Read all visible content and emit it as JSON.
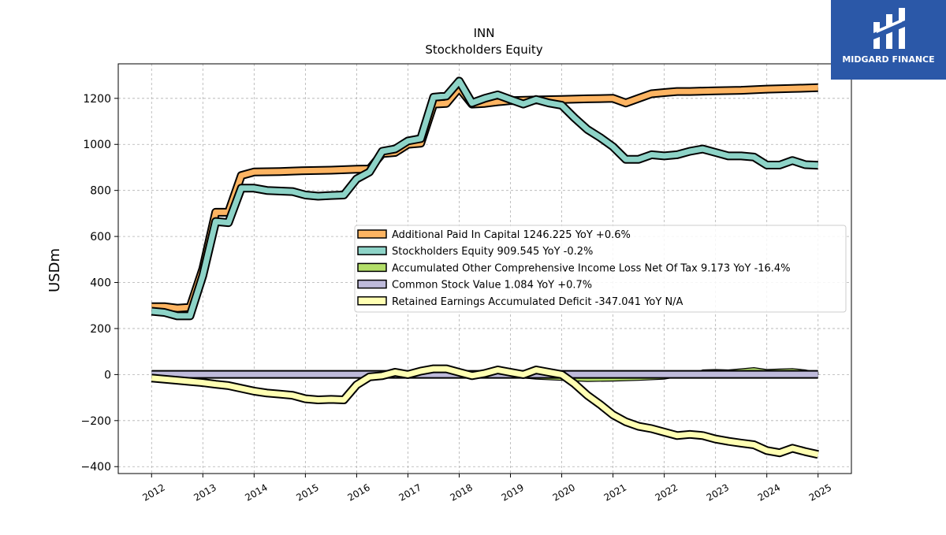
{
  "brand": {
    "name": "MIDGARD FINANCE",
    "background": "#2b58a8"
  },
  "chart_data": {
    "type": "area",
    "title": "INN",
    "subtitle": "Stockholders  Equity",
    "xlabel": "",
    "ylabel": "USDm",
    "ylim": [
      -430,
      1350
    ],
    "yticks": [
      -400,
      -200,
      0,
      200,
      400,
      600,
      800,
      1000,
      1200
    ],
    "ytick_labels": [
      "−400",
      "−200",
      "0",
      "200",
      "400",
      "600",
      "800",
      "1000",
      "1200"
    ],
    "xlim": [
      2011.35,
      2025.65
    ],
    "xticks": [
      2012,
      2013,
      2014,
      2015,
      2016,
      2017,
      2018,
      2019,
      2020,
      2021,
      2022,
      2023,
      2024,
      2025
    ],
    "xtick_labels": [
      "2012",
      "2013",
      "2014",
      "2015",
      "2016",
      "2017",
      "2018",
      "2019",
      "2020",
      "2021",
      "2022",
      "2023",
      "2024",
      "2025"
    ],
    "grid": true,
    "legend_position": "center-right",
    "series": [
      {
        "name": "Additional Paid In Capital  1246.225 YoY +0.6%",
        "color": "#fdb462",
        "points": [
          [
            2012.0,
            295
          ],
          [
            2012.25,
            295
          ],
          [
            2012.5,
            288
          ],
          [
            2012.75,
            292
          ],
          [
            2013.0,
            460
          ],
          [
            2013.25,
            705
          ],
          [
            2013.5,
            705
          ],
          [
            2013.75,
            865
          ],
          [
            2014.0,
            880
          ],
          [
            2014.5,
            882
          ],
          [
            2014.75,
            884
          ],
          [
            2015.0,
            886
          ],
          [
            2015.5,
            888
          ],
          [
            2015.75,
            890
          ],
          [
            2016.0,
            892
          ],
          [
            2016.25,
            893
          ],
          [
            2016.5,
            960
          ],
          [
            2016.75,
            965
          ],
          [
            2017.0,
            1000
          ],
          [
            2017.25,
            1005
          ],
          [
            2017.5,
            1175
          ],
          [
            2017.75,
            1178
          ],
          [
            2018.0,
            1245
          ],
          [
            2018.25,
            1175
          ],
          [
            2018.5,
            1178
          ],
          [
            2018.75,
            1185
          ],
          [
            2019.0,
            1190
          ],
          [
            2019.5,
            1193
          ],
          [
            2020.0,
            1195
          ],
          [
            2020.5,
            1198
          ],
          [
            2021.0,
            1200
          ],
          [
            2021.25,
            1180
          ],
          [
            2021.5,
            1200
          ],
          [
            2021.75,
            1220
          ],
          [
            2022.0,
            1225
          ],
          [
            2022.25,
            1230
          ],
          [
            2022.5,
            1230
          ],
          [
            2023.0,
            1233
          ],
          [
            2023.5,
            1235
          ],
          [
            2024.0,
            1240
          ],
          [
            2024.5,
            1243
          ],
          [
            2025.0,
            1246.225
          ]
        ]
      },
      {
        "name": "Stockholders Equity  909.545 YoY -0.2%",
        "color": "#8dd3c7",
        "points": [
          [
            2012.0,
            275
          ],
          [
            2012.25,
            270
          ],
          [
            2012.5,
            255
          ],
          [
            2012.75,
            255
          ],
          [
            2013.0,
            430
          ],
          [
            2013.25,
            665
          ],
          [
            2013.5,
            660
          ],
          [
            2013.75,
            810
          ],
          [
            2014.0,
            810
          ],
          [
            2014.25,
            800
          ],
          [
            2014.75,
            795
          ],
          [
            2015.0,
            780
          ],
          [
            2015.25,
            775
          ],
          [
            2015.5,
            778
          ],
          [
            2015.75,
            780
          ],
          [
            2016.0,
            850
          ],
          [
            2016.25,
            880
          ],
          [
            2016.5,
            970
          ],
          [
            2016.75,
            980
          ],
          [
            2017.0,
            1015
          ],
          [
            2017.25,
            1025
          ],
          [
            2017.5,
            1205
          ],
          [
            2017.75,
            1210
          ],
          [
            2018.0,
            1275
          ],
          [
            2018.25,
            1180
          ],
          [
            2018.5,
            1200
          ],
          [
            2018.75,
            1215
          ],
          [
            2019.0,
            1195
          ],
          [
            2019.25,
            1175
          ],
          [
            2019.5,
            1195
          ],
          [
            2019.75,
            1180
          ],
          [
            2020.0,
            1170
          ],
          [
            2020.25,
            1115
          ],
          [
            2020.5,
            1065
          ],
          [
            2020.75,
            1030
          ],
          [
            2021.0,
            990
          ],
          [
            2021.25,
            935
          ],
          [
            2021.5,
            935
          ],
          [
            2021.75,
            955
          ],
          [
            2022.0,
            950
          ],
          [
            2022.25,
            955
          ],
          [
            2022.5,
            970
          ],
          [
            2022.75,
            980
          ],
          [
            2023.0,
            965
          ],
          [
            2023.25,
            950
          ],
          [
            2023.5,
            950
          ],
          [
            2023.75,
            945
          ],
          [
            2024.0,
            910
          ],
          [
            2024.25,
            910
          ],
          [
            2024.5,
            930
          ],
          [
            2024.75,
            912
          ],
          [
            2025.0,
            909.545
          ]
        ]
      },
      {
        "name": "Accumulated Other Comprehensive Income Loss Net Of Tax  9.173 YoY -16.4%",
        "color": "#b3de69",
        "points": [
          [
            2012.0,
            0
          ],
          [
            2015.0,
            0
          ],
          [
            2016.0,
            0
          ],
          [
            2017.0,
            -2
          ],
          [
            2018.0,
            -2
          ],
          [
            2018.5,
            0
          ],
          [
            2019.0,
            -10
          ],
          [
            2019.5,
            -20
          ],
          [
            2020.0,
            -25
          ],
          [
            2020.5,
            -30
          ],
          [
            2021.0,
            -28
          ],
          [
            2021.5,
            -25
          ],
          [
            2022.0,
            -20
          ],
          [
            2022.5,
            0
          ],
          [
            2022.75,
            20
          ],
          [
            2023.0,
            22
          ],
          [
            2023.25,
            20
          ],
          [
            2023.5,
            25
          ],
          [
            2023.75,
            30
          ],
          [
            2024.0,
            22
          ],
          [
            2024.25,
            24
          ],
          [
            2024.5,
            26
          ],
          [
            2024.75,
            20
          ],
          [
            2025.0,
            9.173
          ]
        ]
      },
      {
        "name": "Common Stock Value  1.084 YoY +0.7%",
        "color": "#bebada",
        "points": [
          [
            2012.0,
            1
          ],
          [
            2025.0,
            1.084
          ]
        ]
      },
      {
        "name": "Retained Earnings Accumulated Deficit  -347.041 YoY N/A",
        "color": "#ffffb3",
        "points": [
          [
            2012.0,
            -15
          ],
          [
            2012.5,
            -25
          ],
          [
            2012.75,
            -30
          ],
          [
            2013.0,
            -35
          ],
          [
            2013.25,
            -42
          ],
          [
            2013.5,
            -48
          ],
          [
            2013.75,
            -60
          ],
          [
            2014.0,
            -72
          ],
          [
            2014.25,
            -80
          ],
          [
            2014.5,
            -85
          ],
          [
            2014.75,
            -90
          ],
          [
            2015.0,
            -105
          ],
          [
            2015.25,
            -110
          ],
          [
            2015.5,
            -108
          ],
          [
            2015.75,
            -110
          ],
          [
            2016.0,
            -45
          ],
          [
            2016.25,
            -10
          ],
          [
            2016.5,
            -5
          ],
          [
            2016.75,
            10
          ],
          [
            2017.0,
            0
          ],
          [
            2017.25,
            15
          ],
          [
            2017.5,
            25
          ],
          [
            2017.75,
            25
          ],
          [
            2018.0,
            10
          ],
          [
            2018.25,
            -5
          ],
          [
            2018.5,
            5
          ],
          [
            2018.75,
            20
          ],
          [
            2019.0,
            10
          ],
          [
            2019.25,
            0
          ],
          [
            2019.5,
            20
          ],
          [
            2019.75,
            10
          ],
          [
            2020.0,
            0
          ],
          [
            2020.25,
            -40
          ],
          [
            2020.5,
            -90
          ],
          [
            2020.75,
            -130
          ],
          [
            2021.0,
            -175
          ],
          [
            2021.25,
            -205
          ],
          [
            2021.5,
            -225
          ],
          [
            2021.75,
            -235
          ],
          [
            2022.0,
            -250
          ],
          [
            2022.25,
            -265
          ],
          [
            2022.5,
            -260
          ],
          [
            2022.75,
            -265
          ],
          [
            2023.0,
            -280
          ],
          [
            2023.25,
            -290
          ],
          [
            2023.5,
            -298
          ],
          [
            2023.75,
            -305
          ],
          [
            2024.0,
            -330
          ],
          [
            2024.25,
            -340
          ],
          [
            2024.5,
            -320
          ],
          [
            2024.75,
            -335
          ],
          [
            2025.0,
            -347.041
          ]
        ]
      }
    ]
  }
}
